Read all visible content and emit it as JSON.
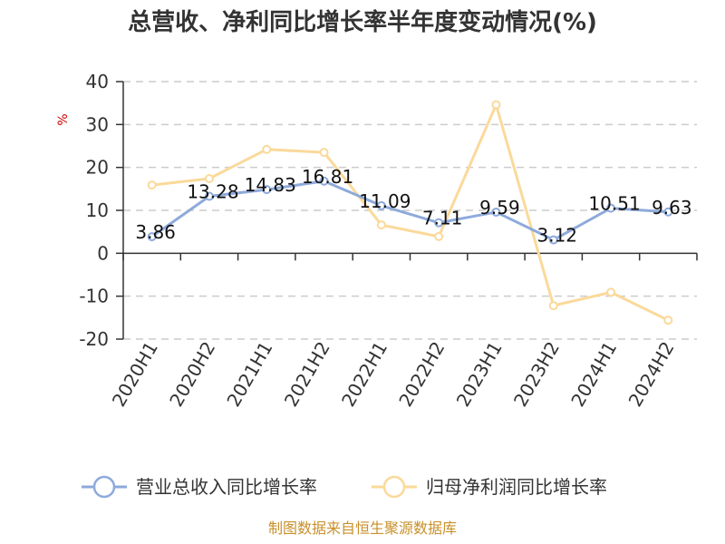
{
  "chart_data": {
    "type": "line",
    "title": "总营收、净利同比增长率半年度变动情况(%)",
    "ylabel": "%",
    "categories": [
      "2020H1",
      "2020H2",
      "2021H1",
      "2021H2",
      "2022H1",
      "2022H2",
      "2023H1",
      "2023H2",
      "2024H1",
      "2024H2"
    ],
    "ylim": [
      -20,
      40
    ],
    "yticks": [
      40,
      30,
      20,
      10,
      0,
      -10,
      -20
    ],
    "grid": true,
    "legend_position": "bottom",
    "series": [
      {
        "name": "营业总收入同比增长率",
        "color": "#8eaadb",
        "values": [
          3.86,
          13.28,
          14.83,
          16.81,
          11.09,
          7.11,
          9.59,
          3.12,
          10.51,
          9.63
        ],
        "labels": [
          "3.86",
          "13.28",
          "14.83",
          "16.81",
          "11.09",
          "7.11",
          "9.59",
          "3.12",
          "10.51",
          "9.63"
        ]
      },
      {
        "name": "归母净利润同比增长率",
        "color": "#fbd99a",
        "values": [
          15.9,
          17.4,
          24.2,
          23.5,
          6.6,
          3.9,
          34.6,
          -12.2,
          -9.1,
          -15.6
        ]
      }
    ]
  },
  "source": "制图数据来自恒生聚源数据库"
}
